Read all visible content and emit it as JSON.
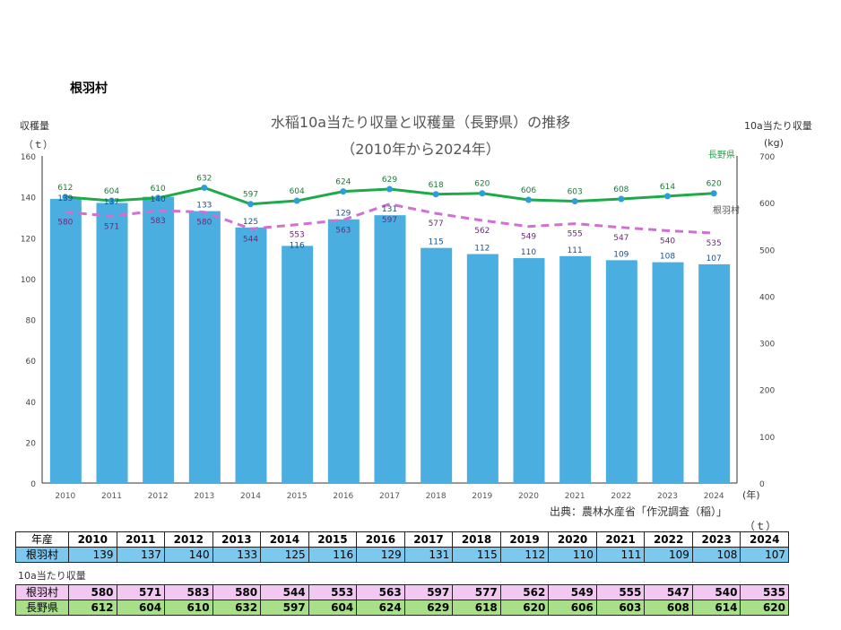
{
  "village": "根羽村",
  "chart_data": {
    "type": "bar+line",
    "title": "水稲10a当たり収量と収穫量（長野県）の推移",
    "subtitle": "（2010年から2024年）",
    "ylabel_left": "収穫量",
    "ylabel_left_unit": "（ｔ）",
    "ylabel_right": "10a当たり収量",
    "ylabel_right_unit": "(kg)",
    "xunit": "(年)",
    "ylim_left": [
      0,
      160
    ],
    "yticks_left": [
      0,
      20,
      40,
      60,
      80,
      100,
      120,
      140,
      160
    ],
    "ylim_right": [
      0,
      700
    ],
    "yticks_right": [
      0,
      100,
      200,
      300,
      400,
      500,
      600,
      700
    ],
    "categories": [
      "2010",
      "2011",
      "2012",
      "2013",
      "2014",
      "2015",
      "2016",
      "2017",
      "2018",
      "2019",
      "2020",
      "2021",
      "2022",
      "2023",
      "2024"
    ],
    "series": [
      {
        "name": "根羽村",
        "kind": "bar",
        "axis": "left",
        "color": "#4BAEE0",
        "values": [
          139,
          137,
          140,
          133,
          125,
          116,
          129,
          131,
          115,
          112,
          110,
          111,
          109,
          108,
          107
        ]
      },
      {
        "name": "長野県",
        "kind": "line",
        "axis": "right",
        "color": "#1EAA4A",
        "values": [
          612,
          604,
          610,
          632,
          597,
          604,
          624,
          629,
          618,
          620,
          606,
          603,
          608,
          614,
          620
        ]
      },
      {
        "name": "根羽村",
        "kind": "dashed-line",
        "axis": "right",
        "color": "#D070D0",
        "values": [
          580,
          571,
          583,
          580,
          544,
          553,
          563,
          597,
          577,
          562,
          549,
          555,
          547,
          540,
          535
        ]
      }
    ],
    "source": "出典：農林水産省「作況調査（稲）」"
  },
  "table": {
    "unit": "（ｔ）",
    "year_label": "年産",
    "row_label": "根羽村",
    "section2_label": "10a当たり収量",
    "row2_label": "根羽村",
    "row3_label": "長野県"
  }
}
